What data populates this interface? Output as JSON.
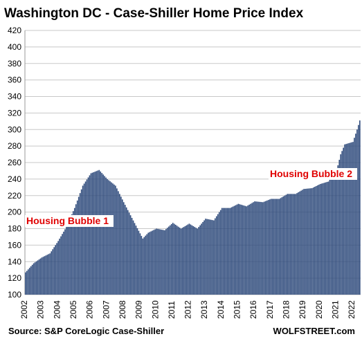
{
  "chart_data": {
    "type": "bar",
    "title": "Washington DC - Case-Shiller Home Price Index",
    "ylim": [
      100,
      420
    ],
    "y_ticks": [
      100,
      120,
      140,
      160,
      180,
      200,
      220,
      240,
      260,
      280,
      300,
      320,
      340,
      360,
      380,
      400,
      420
    ],
    "x_ticks": [
      "2002",
      "2003",
      "2004",
      "2005",
      "2006",
      "2007",
      "2008",
      "2009",
      "2010",
      "2011",
      "2012",
      "2013",
      "2014",
      "2015",
      "2016",
      "2017",
      "2018",
      "2019",
      "2020",
      "2021",
      "2022"
    ],
    "x_start": "2002-01",
    "frequency": "monthly",
    "grid": true,
    "bar_color": "#2f4b7c",
    "annotations": [
      {
        "text": "Housing Bubble 1",
        "color": "#e00000"
      },
      {
        "text": "Housing Bubble 2",
        "color": "#e00000"
      }
    ],
    "series_keypoints": [
      [
        "2002-01",
        127
      ],
      [
        "2002-07",
        138
      ],
      [
        "2003-01",
        145
      ],
      [
        "2003-07",
        150
      ],
      [
        "2004-01",
        165
      ],
      [
        "2004-07",
        182
      ],
      [
        "2005-01",
        205
      ],
      [
        "2005-07",
        232
      ],
      [
        "2006-01",
        247
      ],
      [
        "2006-07",
        251
      ],
      [
        "2007-01",
        240
      ],
      [
        "2007-07",
        232
      ],
      [
        "2008-01",
        212
      ],
      [
        "2008-07",
        193
      ],
      [
        "2009-03",
        168
      ],
      [
        "2009-07",
        175
      ],
      [
        "2010-01",
        180
      ],
      [
        "2010-07",
        178
      ],
      [
        "2011-01",
        187
      ],
      [
        "2011-07",
        180
      ],
      [
        "2012-01",
        186
      ],
      [
        "2012-07",
        180
      ],
      [
        "2013-01",
        192
      ],
      [
        "2013-07",
        190
      ],
      [
        "2014-01",
        205
      ],
      [
        "2014-07",
        205
      ],
      [
        "2015-01",
        210
      ],
      [
        "2015-07",
        207
      ],
      [
        "2016-01",
        213
      ],
      [
        "2016-07",
        212
      ],
      [
        "2017-01",
        216
      ],
      [
        "2017-07",
        216
      ],
      [
        "2018-01",
        222
      ],
      [
        "2018-07",
        222
      ],
      [
        "2019-01",
        228
      ],
      [
        "2019-07",
        229
      ],
      [
        "2020-01",
        234
      ],
      [
        "2020-07",
        237
      ],
      [
        "2021-01",
        250
      ],
      [
        "2021-04",
        270
      ],
      [
        "2021-07",
        282
      ],
      [
        "2022-01",
        285
      ],
      [
        "2022-04",
        300
      ],
      [
        "2022-06",
        311
      ]
    ]
  },
  "footer": {
    "source": "Source: S&P CoreLogic Case-Shiller",
    "brand": "WOLFSTREET.com"
  }
}
